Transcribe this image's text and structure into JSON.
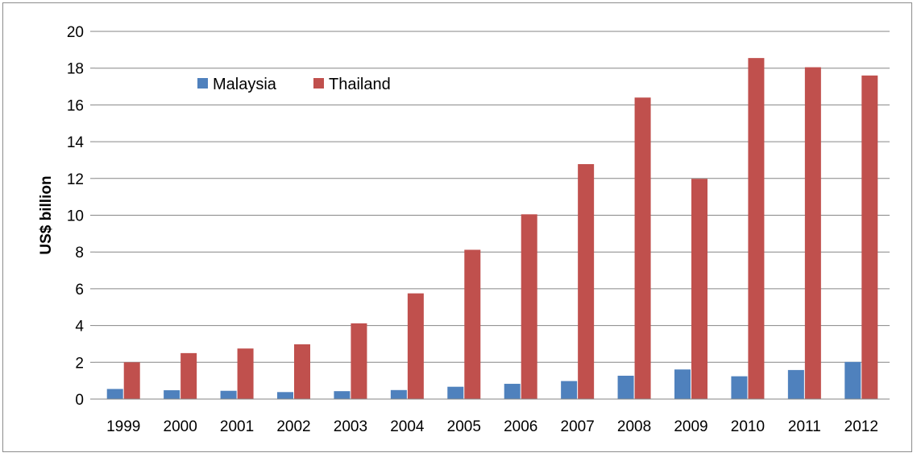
{
  "chart_data": {
    "type": "bar",
    "title": "",
    "xlabel": "",
    "ylabel": "US$ billion",
    "ylim": [
      0,
      20
    ],
    "yticks": [
      0,
      2,
      4,
      6,
      8,
      10,
      12,
      14,
      16,
      18,
      20
    ],
    "grid": true,
    "legend_position": "top-left",
    "categories": [
      "1999",
      "2000",
      "2001",
      "2002",
      "2003",
      "2004",
      "2005",
      "2006",
      "2007",
      "2008",
      "2009",
      "2010",
      "2011",
      "2012"
    ],
    "series": [
      {
        "name": "Malaysia",
        "color": "#4f81bd",
        "values": [
          0.55,
          0.48,
          0.45,
          0.38,
          0.43,
          0.49,
          0.67,
          0.83,
          0.98,
          1.27,
          1.61,
          1.24,
          1.58,
          2.02
        ]
      },
      {
        "name": "Thailand",
        "color": "#c0504d",
        "values": [
          2.0,
          2.5,
          2.75,
          2.98,
          4.12,
          5.75,
          8.12,
          10.05,
          12.78,
          16.4,
          11.98,
          18.55,
          18.05,
          17.6
        ]
      }
    ]
  }
}
